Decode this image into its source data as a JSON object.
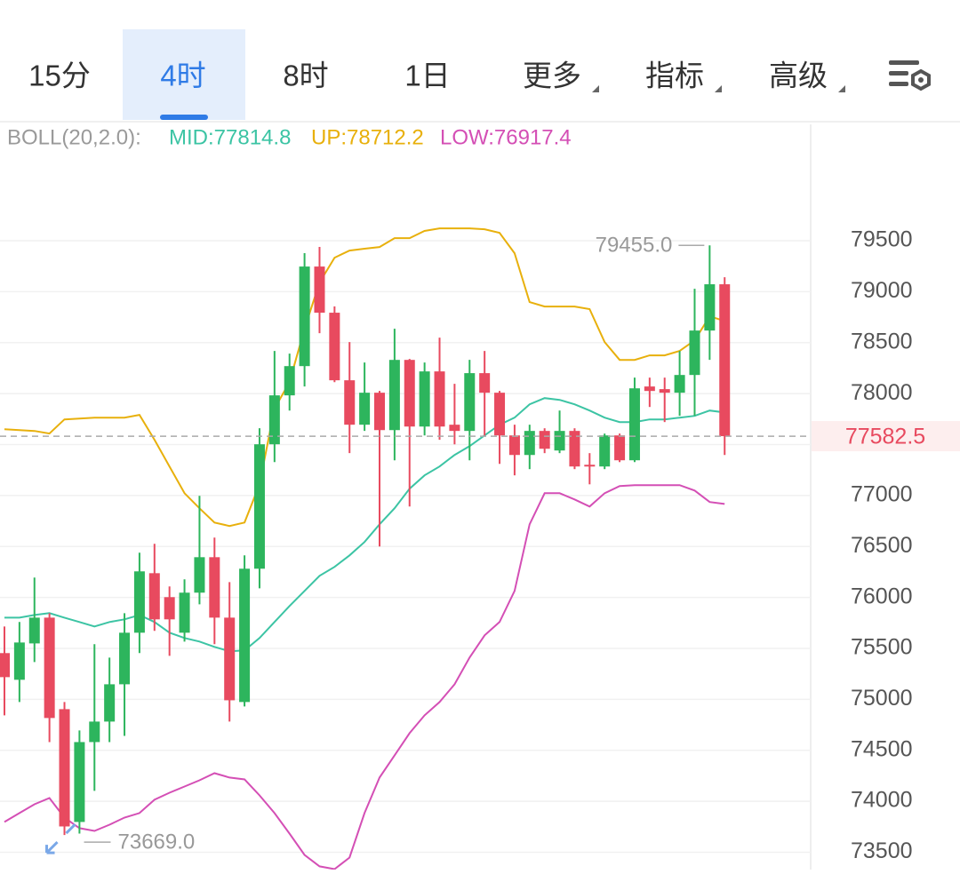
{
  "tabs": {
    "items": [
      "15分",
      "4时",
      "8时",
      "1日",
      "更多",
      "指标",
      "高级"
    ],
    "selected": 1,
    "dropdowns": [
      4,
      5,
      6
    ]
  },
  "chart_data": {
    "type": "candlestick",
    "indicator_label": "BOLL(20,2.0):",
    "up_color": "#2db55d",
    "down_color": "#e84a5f",
    "ylim": [
      73330,
      80250
    ],
    "yticks": [
      73500,
      74000,
      74500,
      75000,
      75500,
      76000,
      76500,
      77000,
      77500,
      78000,
      78500,
      79000,
      79500
    ],
    "grid": true,
    "open": [
      75454,
      75192,
      75549,
      75802,
      74904,
      73797,
      74581,
      74782,
      75148,
      75654,
      76238,
      76003,
      75654,
      76047,
      76395,
      75802,
      74974,
      76282,
      77503,
      77983,
      78270,
      79247,
      78794,
      78131,
      77695,
      78009,
      77642,
      78331,
      77677,
      78218,
      77695,
      77634,
      78201,
      78009,
      77590,
      77398,
      77634,
      77442,
      77634,
      77302,
      77285,
      77590,
      77346,
      78070,
      78044,
      78009,
      78183,
      78619,
      79073
    ],
    "high": [
      75715,
      75759,
      76195,
      75846,
      74974,
      74695,
      75541,
      75410,
      75846,
      76439,
      76526,
      76108,
      76178,
      76997,
      76587,
      76151,
      76413,
      77660,
      78419,
      78393,
      79378,
      79439,
      78855,
      78506,
      78305,
      78026,
      78637,
      78340,
      78305,
      78549,
      78096,
      78331,
      78419,
      78026,
      77695,
      77695,
      77660,
      77834,
      77660,
      77416,
      77608,
      77608,
      78157,
      78157,
      78157,
      78419,
      79029,
      79455,
      79142
    ],
    "low": [
      74843,
      74974,
      75366,
      74581,
      73669,
      73683,
      74102,
      74581,
      74642,
      75454,
      75672,
      75427,
      75567,
      75933,
      75541,
      74782,
      74930,
      76090,
      77328,
      77834,
      78070,
      78593,
      78113,
      77416,
      77634,
      76500,
      77346,
      76892,
      77590,
      77547,
      77503,
      77346,
      77590,
      77311,
      77198,
      77259,
      77416,
      77416,
      77259,
      77110,
      77259,
      77328,
      77328,
      77869,
      77721,
      77782,
      77782,
      78331,
      77398
    ],
    "close": [
      75218,
      75558,
      75802,
      74817,
      73753,
      74581,
      74782,
      75148,
      75654,
      76256,
      75785,
      75785,
      76047,
      76395,
      75802,
      74991,
      76282,
      77503,
      77983,
      78270,
      79247,
      78794,
      78131,
      77695,
      78009,
      77642,
      78331,
      77677,
      78218,
      77677,
      77634,
      78201,
      78009,
      77590,
      77398,
      77634,
      77459,
      77634,
      77285,
      77285,
      77590,
      77346,
      78052,
      78026,
      78009,
      78183,
      78619,
      79073,
      77582.5
    ],
    "series": [
      {
        "name": "MID:77814.8",
        "color": "#3cc4a4",
        "values": [
          75802,
          75802,
          75828,
          75846,
          75802,
          75759,
          75715,
          75759,
          75785,
          75828,
          75759,
          75654,
          75602,
          75567,
          75515,
          75471,
          75480,
          75602,
          75759,
          75916,
          76064,
          76212,
          76300,
          76413,
          76544,
          76718,
          76875,
          77067,
          77198,
          77285,
          77398,
          77485,
          77590,
          77695,
          77764,
          77895,
          77956,
          77939,
          77895,
          77834,
          77764,
          77721,
          77721,
          77747,
          77747,
          77764,
          77782,
          77834,
          77814.8
        ]
      },
      {
        "name": "UP:78712.2",
        "color": "#e8b00c",
        "values": [
          77651,
          77642,
          77634,
          77608,
          77747,
          77756,
          77764,
          77764,
          77764,
          77791,
          77547,
          77285,
          77023,
          76875,
          76735,
          76701,
          76735,
          77110,
          77852,
          78113,
          78637,
          79090,
          79334,
          79404,
          79422,
          79439,
          79526,
          79526,
          79596,
          79622,
          79622,
          79622,
          79613,
          79578,
          79378,
          78898,
          78855,
          78855,
          78855,
          78829,
          78506,
          78331,
          78331,
          78375,
          78375,
          78419,
          78523,
          78759,
          78712.2
        ]
      },
      {
        "name": "LOW:76917.4",
        "color": "#d44fb5",
        "values": [
          73797,
          73884,
          73971,
          74032,
          73840,
          73736,
          73709,
          73770,
          73840,
          73884,
          74015,
          74084,
          74145,
          74206,
          74276,
          74233,
          74215,
          74058,
          73884,
          73683,
          73474,
          73361,
          73334,
          73448,
          73884,
          74233,
          74451,
          74669,
          74843,
          74974,
          75148,
          75410,
          75628,
          75759,
          76064,
          76718,
          77023,
          77023,
          76962,
          76892,
          77023,
          77093,
          77102,
          77102,
          77102,
          77102,
          77049,
          76936,
          76917.4
        ]
      }
    ],
    "max_marker": {
      "index": 47,
      "value": 79455.0,
      "label": "79455.0"
    },
    "min_marker": {
      "index": 4,
      "value": 73669.0,
      "label": "73669.0"
    },
    "current_price": {
      "value": 77582.5,
      "label": "77582.5"
    }
  }
}
